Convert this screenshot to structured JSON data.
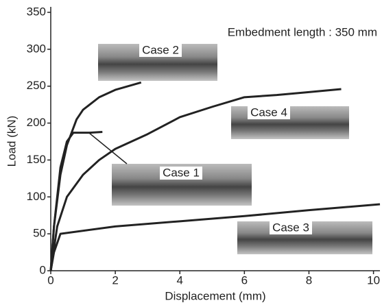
{
  "chart_data": {
    "type": "line",
    "annotation": "Embedment length : 350 mm",
    "x_label": "Displacement (mm)",
    "y_label": "Load (kN)",
    "xlim": [
      0,
      10.2
    ],
    "ylim": [
      0,
      350
    ],
    "xticks": [
      0,
      2,
      4,
      6,
      8,
      10
    ],
    "yticks": [
      0,
      50,
      100,
      150,
      200,
      250,
      300,
      350
    ],
    "series": [
      {
        "name": "Case 1",
        "color": "#222222",
        "x": [
          0,
          0.1,
          0.3,
          0.5,
          0.7,
          1.2,
          1.6
        ],
        "values": [
          0,
          60,
          140,
          175,
          187,
          187,
          188
        ]
      },
      {
        "name": "Case 2",
        "color": "#222222",
        "x": [
          0,
          0.1,
          0.3,
          0.5,
          0.8,
          1.0,
          1.5,
          2.0,
          2.4,
          2.8
        ],
        "values": [
          0,
          60,
          130,
          170,
          205,
          218,
          235,
          245,
          250,
          255
        ]
      },
      {
        "name": "Case 3",
        "color": "#222222",
        "x": [
          0,
          0.1,
          0.3,
          2,
          4,
          6,
          8,
          10.2
        ],
        "values": [
          0,
          25,
          50,
          60,
          67,
          74,
          82,
          90
        ]
      },
      {
        "name": "Case 4",
        "color": "#222222",
        "x": [
          0,
          0.2,
          0.5,
          1.0,
          1.5,
          2.0,
          3.0,
          4.0,
          5.0,
          6.0,
          7.0,
          8.0,
          9.0
        ],
        "values": [
          0,
          60,
          100,
          130,
          150,
          165,
          185,
          208,
          222,
          235,
          238,
          242,
          246
        ]
      }
    ]
  }
}
